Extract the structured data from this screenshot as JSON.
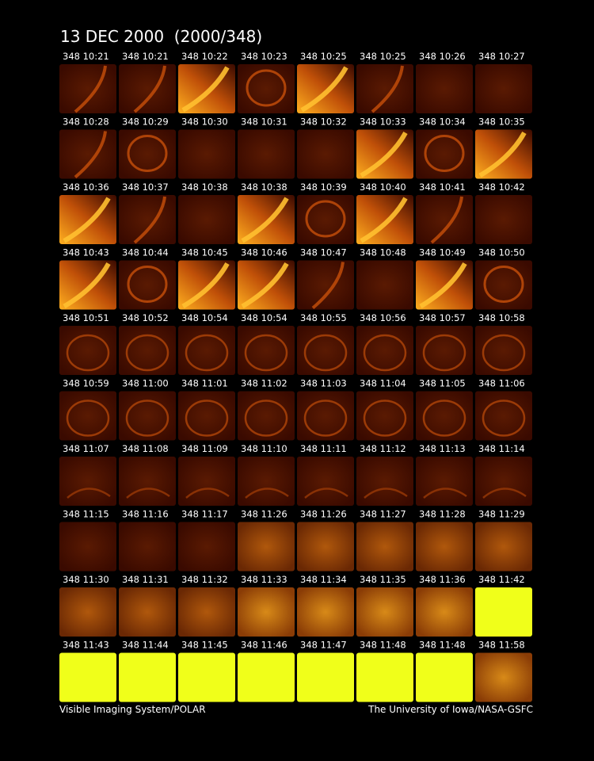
{
  "title": "13 DEC 2000  (2000/348)",
  "frames": [
    "348 10:21",
    "348 10:21",
    "348 10:22",
    "348 10:23",
    "348 10:25",
    "348 10:25",
    "348 10:26",
    "348 10:27",
    "348 10:28",
    "348 10:29",
    "348 10:30",
    "348 10:31",
    "348 10:32",
    "348 10:33",
    "348 10:34",
    "348 10:35",
    "348 10:36",
    "348 10:37",
    "348 10:38",
    "348 10:38",
    "348 10:39",
    "348 10:40",
    "348 10:41",
    "348 10:42",
    "348 10:43",
    "348 10:44",
    "348 10:45",
    "348 10:46",
    "348 10:47",
    "348 10:48",
    "348 10:49",
    "348 10:50",
    "348 10:51",
    "348 10:52",
    "348 10:54",
    "348 10:54",
    "348 10:55",
    "348 10:56",
    "348 10:57",
    "348 10:58",
    "348 10:59",
    "348 11:00",
    "348 11:01",
    "348 11:02",
    "348 11:03",
    "348 11:04",
    "348 11:05",
    "348 11:06",
    "348 11:07",
    "348 11:08",
    "348 11:09",
    "348 11:10",
    "348 11:11",
    "348 11:12",
    "348 11:13",
    "348 11:14",
    "348 11:15",
    "348 11:16",
    "348 11:17",
    "348 11:26",
    "348 11:26",
    "348 11:27",
    "348 11:28",
    "348 11:29",
    "348 11:30",
    "348 11:31",
    "348 11:32",
    "348 11:33",
    "348 11:34",
    "348 11:35",
    "348 11:36",
    "348 11:42",
    "348 11:43",
    "348 11:44",
    "348 11:45",
    "348 11:46",
    "348 11:47",
    "348 11:48",
    "348 11:48",
    "348 11:58"
  ],
  "footer": {
    "left": "Visible Imaging System/POLAR",
    "right": "The University of Iowa/NASA-GSFC"
  }
}
